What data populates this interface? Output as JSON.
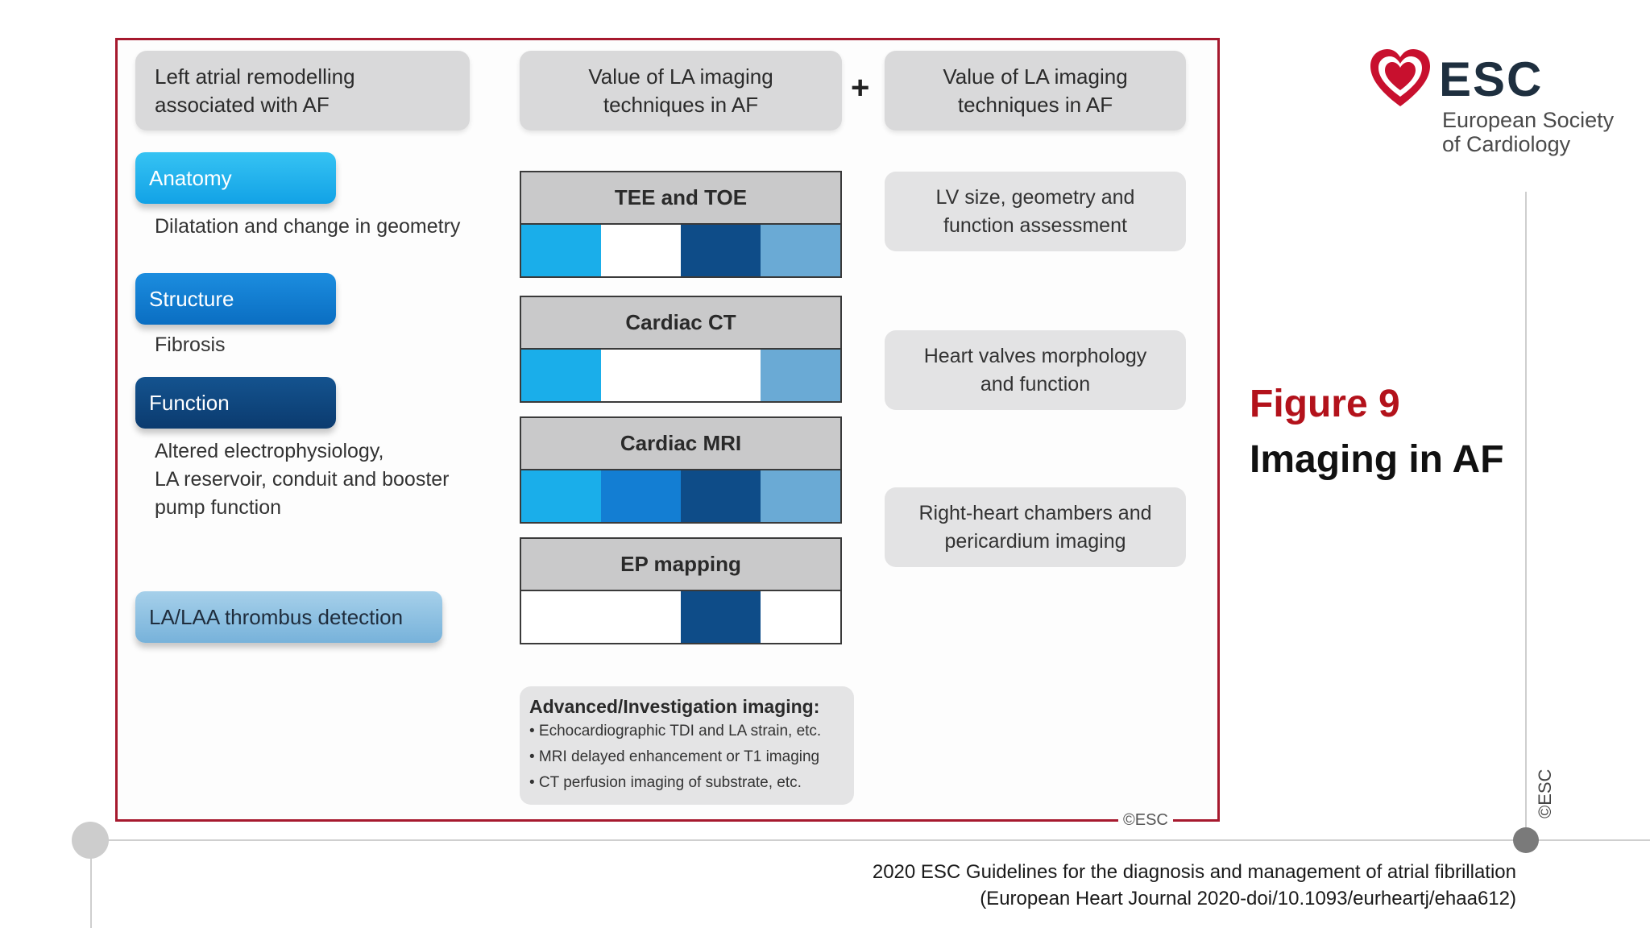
{
  "panel": {
    "header_left": "Left atrial remodelling\nassociated with AF",
    "header_middle": "Value of LA imaging\ntechniques in AF",
    "plus": "+",
    "header_right": "Value of LA imaging\ntechniques in AF",
    "remodelling": [
      {
        "label": "Anatomy",
        "description": "Dilatation and change in geometry",
        "color": "#1eb1ec"
      },
      {
        "label": "Structure",
        "description": "Fibrosis",
        "color": "#137fd4"
      },
      {
        "label": "Function",
        "description": "Altered electrophysiology,\nLA reservoir, conduit and booster\npump function",
        "color": "#0f4880"
      }
    ],
    "thrombus_label": "LA/LAA thrombus detection",
    "techniques": [
      {
        "name": "TEE and TOE",
        "cells": [
          "#1aaeea",
          "#ffffff",
          "#0e4c88",
          "#6aaad5"
        ]
      },
      {
        "name": "Cardiac CT",
        "cells": [
          "#1aaeea",
          "#ffffff",
          "#ffffff",
          "#6aaad5"
        ]
      },
      {
        "name": "Cardiac MRI",
        "cells": [
          "#1aaeea",
          "#137ed3",
          "#0e4c88",
          "#6aaad5"
        ]
      },
      {
        "name": "EP mapping",
        "cells": [
          "#ffffff",
          "#ffffff",
          "#0e4c88",
          "#ffffff"
        ]
      }
    ],
    "right_values": [
      "LV size, geometry and\nfunction assessment",
      "Heart valves morphology\nand function",
      "Right-heart chambers and\npericardium imaging"
    ],
    "advanced": {
      "title": "Advanced/Investigation imaging:",
      "items": [
        "• Echocardiographic TDI and LA strain, etc.",
        "• MRI delayed enhancement or T1 imaging",
        "• CT perfusion imaging of substrate, etc."
      ]
    },
    "copyright": "©ESC"
  },
  "logo": {
    "icon": "heart-logo-icon",
    "name": "ESC",
    "line1": "European Society",
    "line2": "of Cardiology"
  },
  "figure": {
    "number": "Figure 9",
    "title": "Imaging in AF"
  },
  "side_copyright": "©ESC",
  "citation": {
    "line1": "2020 ESC Guidelines for the diagnosis and management of atrial fibrillation",
    "line2": "(European Heart Journal 2020-doi/10.1093/eurheartj/ehaa612)"
  },
  "colors": {
    "frame_red": "#a6192e",
    "figure_red": "#b3121b"
  }
}
